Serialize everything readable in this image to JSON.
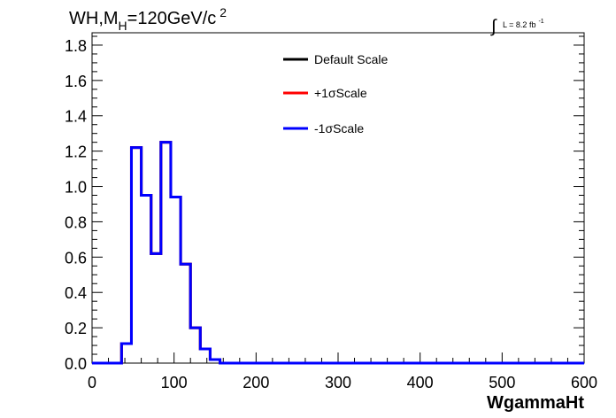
{
  "chart_data": {
    "type": "step-histogram",
    "title": {
      "prefix": "WH,M",
      "subscript": "H",
      "suffix": "=120GeV/c",
      "superscript": "2"
    },
    "luminosity": {
      "integral": "∫",
      "text": "L = 8.2 fb",
      "superscript": "-1"
    },
    "xlabel": "WgammaHt",
    "ylabel": "",
    "xlim": [
      0,
      600
    ],
    "ylim": [
      0,
      1.87
    ],
    "x_ticks": [
      0,
      100,
      200,
      300,
      400,
      500,
      600
    ],
    "x_tick_labels": [
      "0",
      "100",
      "200",
      "300",
      "400",
      "500",
      "600"
    ],
    "y_ticks": [
      0,
      0.2,
      0.4,
      0.6,
      0.8,
      1.0,
      1.2,
      1.4,
      1.6,
      1.8
    ],
    "y_tick_labels": [
      "0.0",
      "0.2",
      "0.4",
      "0.6",
      "0.8",
      "1.0",
      "1.2",
      "1.4",
      "1.6",
      "1.8"
    ],
    "bin_edges": [
      0,
      12,
      24,
      36,
      48,
      60,
      72,
      84,
      96,
      108,
      120,
      132,
      144,
      156,
      168,
      600
    ],
    "legend_position": "top-right",
    "series": [
      {
        "name": "Default Scale",
        "color": "#000000",
        "values": [
          0,
          0,
          0,
          0.11,
          1.22,
          0.95,
          0.62,
          1.25,
          0.94,
          0.56,
          0.2,
          0.08,
          0.02,
          0,
          0
        ]
      },
      {
        "name": "+1σScale",
        "color": "#ff0000",
        "values": [
          0,
          0,
          0,
          0.11,
          1.22,
          0.95,
          0.62,
          1.25,
          0.94,
          0.56,
          0.2,
          0.08,
          0.02,
          0,
          0
        ]
      },
      {
        "name": "-1σScale",
        "color": "#0000ff",
        "values": [
          0,
          0,
          0,
          0.11,
          1.22,
          0.95,
          0.62,
          1.25,
          0.94,
          0.56,
          0.2,
          0.08,
          0.02,
          0,
          0
        ]
      }
    ]
  }
}
